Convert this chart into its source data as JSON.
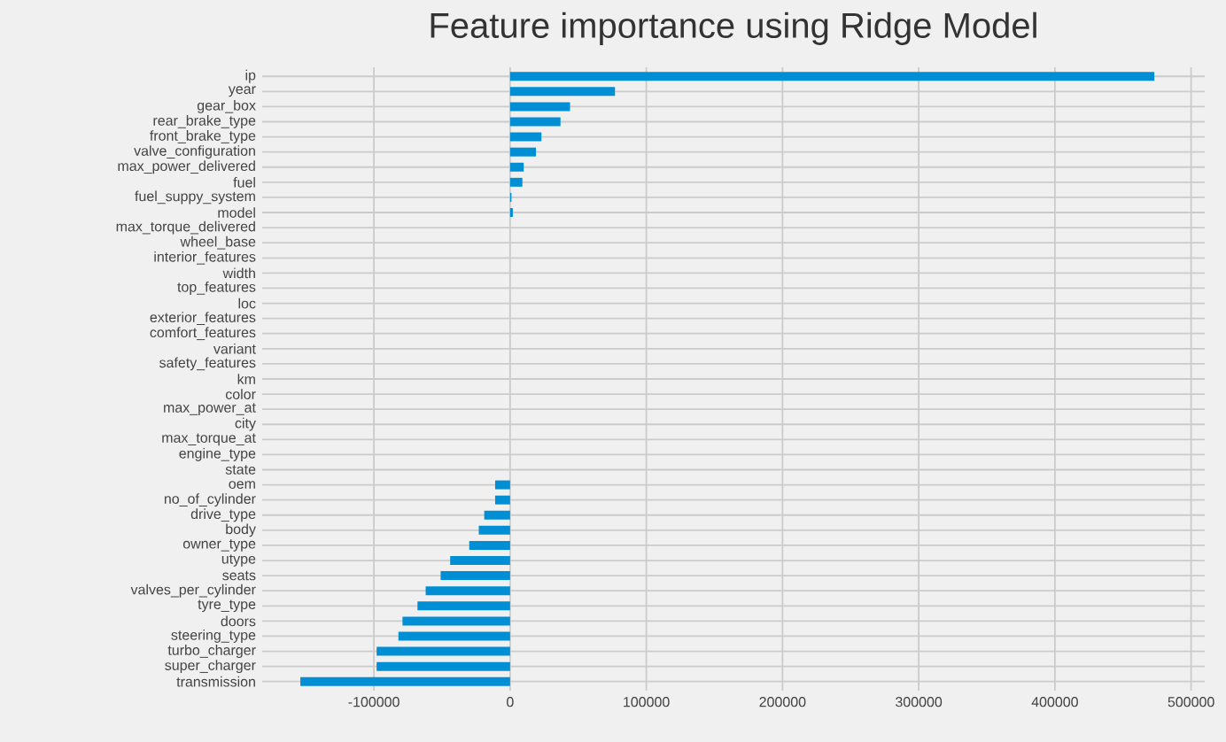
{
  "chart_data": {
    "type": "bar",
    "orientation": "horizontal",
    "title": "Feature importance using Ridge Model",
    "categories": [
      "ip",
      "year",
      "gear_box",
      "rear_brake_type",
      "front_brake_type",
      "valve_configuration",
      "max_power_delivered",
      "fuel",
      "fuel_suppy_system",
      "model",
      "max_torque_delivered",
      "wheel_base",
      "interior_features",
      "width",
      "top_features",
      "loc",
      "exterior_features",
      "comfort_features",
      "variant",
      "safety_features",
      "km",
      "color",
      "max_power_at",
      "city",
      "max_torque_at",
      "engine_type",
      "state",
      "oem",
      "no_of_cylinder",
      "drive_type",
      "body",
      "owner_type",
      "utype",
      "seats",
      "valves_per_cylinder",
      "tyre_type",
      "doors",
      "steering_type",
      "turbo_charger",
      "super_charger",
      "transmission"
    ],
    "values": [
      473000,
      77000,
      44000,
      37000,
      23000,
      19000,
      10000,
      9000,
      1000,
      2000,
      0,
      0,
      0,
      0,
      0,
      0,
      0,
      0,
      0,
      0,
      0,
      0,
      0,
      0,
      0,
      0,
      0,
      -11000,
      -11000,
      -19000,
      -23000,
      -30000,
      -44000,
      -51000,
      -62000,
      -68000,
      -79000,
      -82000,
      -98000,
      -98000,
      -154000
    ],
    "color": "#008fd5",
    "xlim": [
      -182000,
      510000
    ],
    "xticks": [
      -100000,
      0,
      100000,
      200000,
      300000,
      400000,
      500000
    ],
    "grid": true
  }
}
